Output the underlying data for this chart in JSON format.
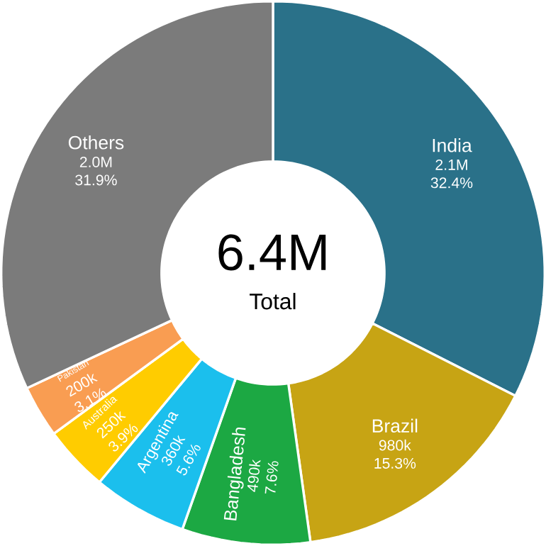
{
  "chart_data": {
    "type": "donut",
    "title": "6.4M",
    "subtitle": "Total",
    "categories": [
      "India",
      "Brazil",
      "Bangladesh",
      "Argentina",
      "Australia",
      "Pakistan",
      "Others"
    ],
    "values": [
      32.4,
      15.3,
      7.6,
      5.6,
      3.9,
      3.1,
      31.9
    ],
    "value_labels": [
      "32.4%",
      "15.3%",
      "7.6%",
      "5.6%",
      "3.9%",
      "3.1%",
      "31.9%"
    ],
    "annotations": [
      "2.1M",
      "980k",
      "490k",
      "360k",
      "250k",
      "200k",
      "2.0M"
    ],
    "colors": [
      "#2a7189",
      "#c7a414",
      "#1ca843",
      "#1bbfed",
      "#ffcc00",
      "#f99d52",
      "#7b7b7b"
    ]
  }
}
